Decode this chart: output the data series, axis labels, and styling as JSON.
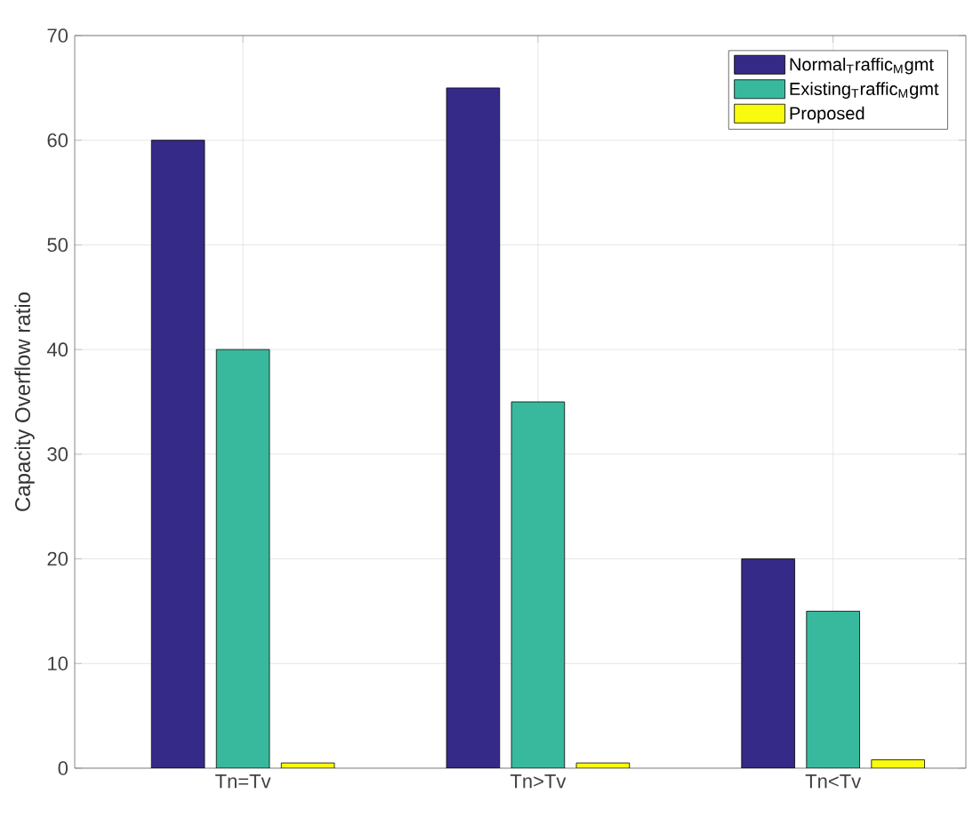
{
  "chart_data": {
    "type": "bar",
    "ylabel": "Capacity Overflow ratio",
    "categories": [
      "Tn=Tv",
      "Tn>Tv",
      "Tn<Tv"
    ],
    "series": [
      {
        "name": "Normal$_{T}$raffic$_{M}$gmt",
        "color": "#352a87",
        "values": [
          60,
          65,
          20
        ]
      },
      {
        "name": "Existing$_{T}$raffic$_{M}$gmt",
        "color": "#38b99e",
        "values": [
          40,
          35,
          15
        ]
      },
      {
        "name": "Proposed",
        "color": "#f9fb0e",
        "values": [
          0.5,
          0.5,
          0.8
        ]
      }
    ],
    "ylim": [
      0,
      70
    ],
    "yticks": [
      0,
      10,
      20,
      30,
      40,
      50,
      60,
      70
    ],
    "grid": true,
    "legend": "top right"
  }
}
